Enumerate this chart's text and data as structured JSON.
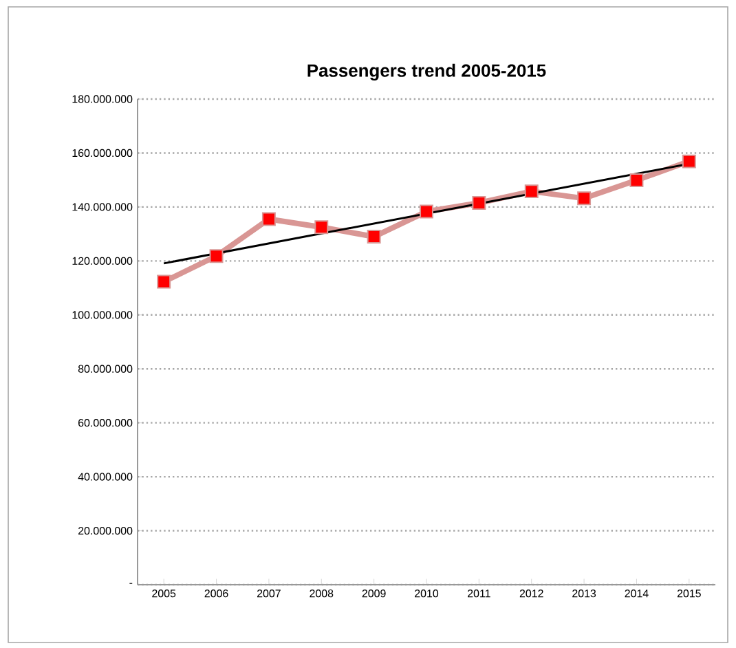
{
  "chart_data": {
    "type": "line",
    "title": "Passengers trend 2005-2015",
    "x": [
      2005,
      2006,
      2007,
      2008,
      2009,
      2010,
      2011,
      2012,
      2013,
      2014,
      2015
    ],
    "series": [
      {
        "color": "#d99694",
        "colors": [
          "#ff0000",
          "#ff0000",
          "#ff0000",
          "#ff0000",
          "#ff0000",
          "#ff0000",
          "#ff0000",
          "#ff0000",
          "#ff0000",
          "#ff0000",
          "#ff0000"
        ],
        "marker": "square",
        "values": [
          112300000,
          121800000,
          135500000,
          132500000,
          129000000,
          138300000,
          141500000,
          145800000,
          143200000,
          149900000,
          156900000
        ]
      },
      {
        "type": "line",
        "color": "#000000",
        "marker": "none",
        "x": [
          2005,
          2015
        ],
        "values": [
          119100000,
          156000000
        ]
      }
    ],
    "xlim": [
      2004.5,
      2015.5
    ],
    "xticks": [
      2005,
      2006,
      2007,
      2008,
      2009,
      2010,
      2011,
      2012,
      2013,
      2014,
      2015
    ],
    "ylim": [
      0,
      180000000
    ],
    "yticks": [
      {
        "value": 0,
        "label": "-"
      },
      {
        "value": 20000000,
        "label": "20.000.000"
      },
      {
        "value": 40000000,
        "label": "40.000.000"
      },
      {
        "value": 60000000,
        "label": "60.000.000"
      },
      {
        "value": 80000000,
        "label": "80.000.000"
      },
      {
        "value": 100000000,
        "label": "100.000.000"
      },
      {
        "value": 120000000,
        "label": "120.000.000"
      },
      {
        "value": 140000000,
        "label": "140.000.000"
      },
      {
        "value": 160000000,
        "label": "160.000.000"
      },
      {
        "value": 180000000,
        "label": "180.000.000"
      }
    ],
    "grid": "y"
  }
}
